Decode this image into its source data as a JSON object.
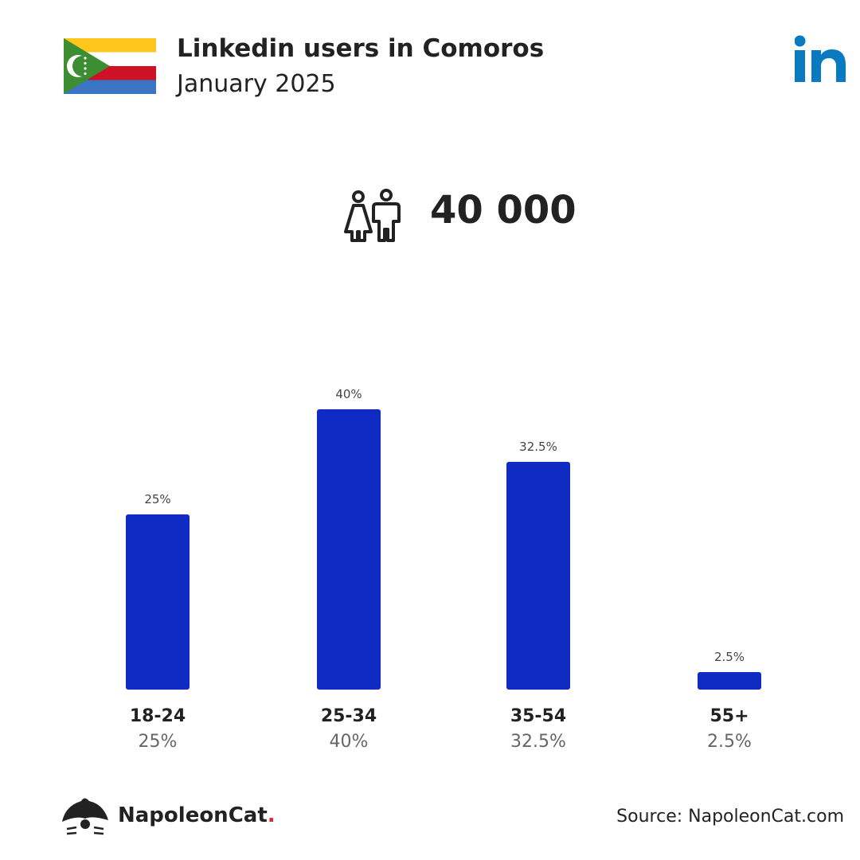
{
  "header": {
    "title": "Linkedin users in Comoros",
    "subtitle": "January 2025",
    "flag_icon": "comoros-flag-icon",
    "logo_icon": "linkedin-logo-icon"
  },
  "summary": {
    "icon": "people-icon",
    "total_users": "40 000"
  },
  "chart_data": {
    "type": "bar",
    "categories": [
      "18-24",
      "25-34",
      "35-54",
      "55+"
    ],
    "values": [
      25,
      40,
      32.5,
      2.5
    ],
    "value_labels": [
      "25%",
      "40%",
      "32.5%",
      "2.5%"
    ],
    "title": "",
    "xlabel": "",
    "ylabel": "",
    "ylim": [
      0,
      40
    ],
    "grid": false,
    "bar_color": "#0f2bc4"
  },
  "colors": {
    "bar": "#0f2bc4",
    "text": "#222222",
    "muted_text": "#666666",
    "linkedin_blue": "#0a7ac0",
    "brand_dot": "#e0262e"
  },
  "footer": {
    "brand_name": "NapoleonCat",
    "brand_dot": ".",
    "logo_icon": "napoleoncat-logo-icon",
    "source": "Source: NapoleonCat.com"
  }
}
